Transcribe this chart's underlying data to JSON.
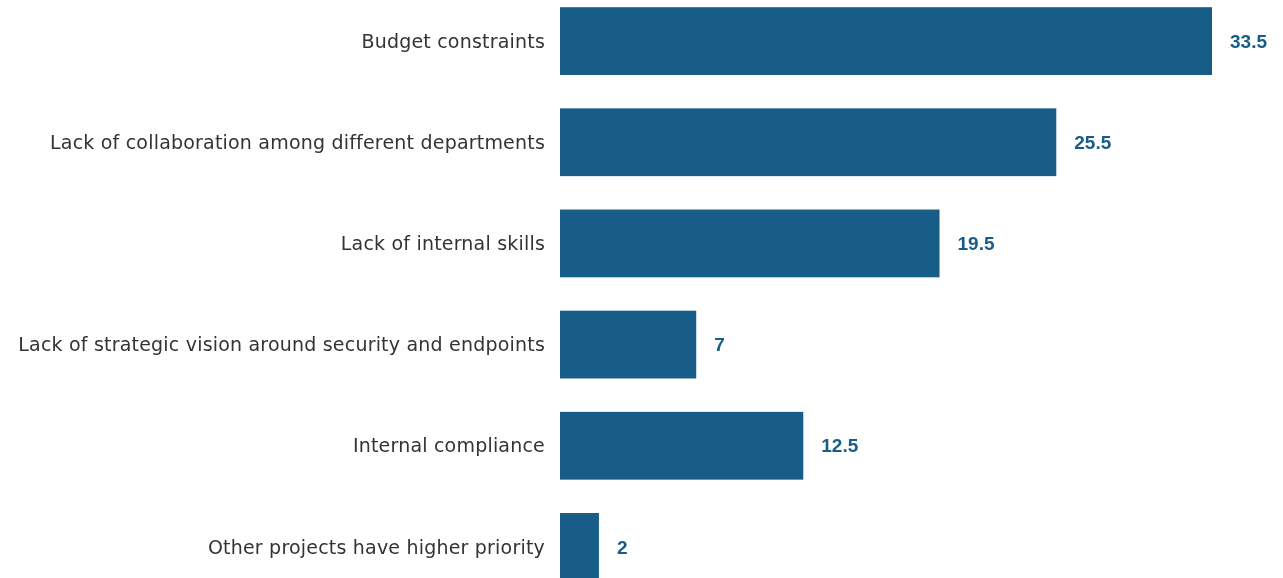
{
  "chart_data": {
    "type": "bar",
    "orientation": "horizontal",
    "categories": [
      "Budget constraints",
      "Lack of collaboration among different departments",
      "Lack of internal skills",
      "Lack of strategic vision around security and endpoints",
      "Internal compliance",
      "Other projects have higher priority"
    ],
    "values": [
      33.5,
      25.5,
      19.5,
      7,
      12.5,
      2
    ],
    "color": "#175d88",
    "xlim": [
      0,
      33.5
    ],
    "data_labels": true
  }
}
